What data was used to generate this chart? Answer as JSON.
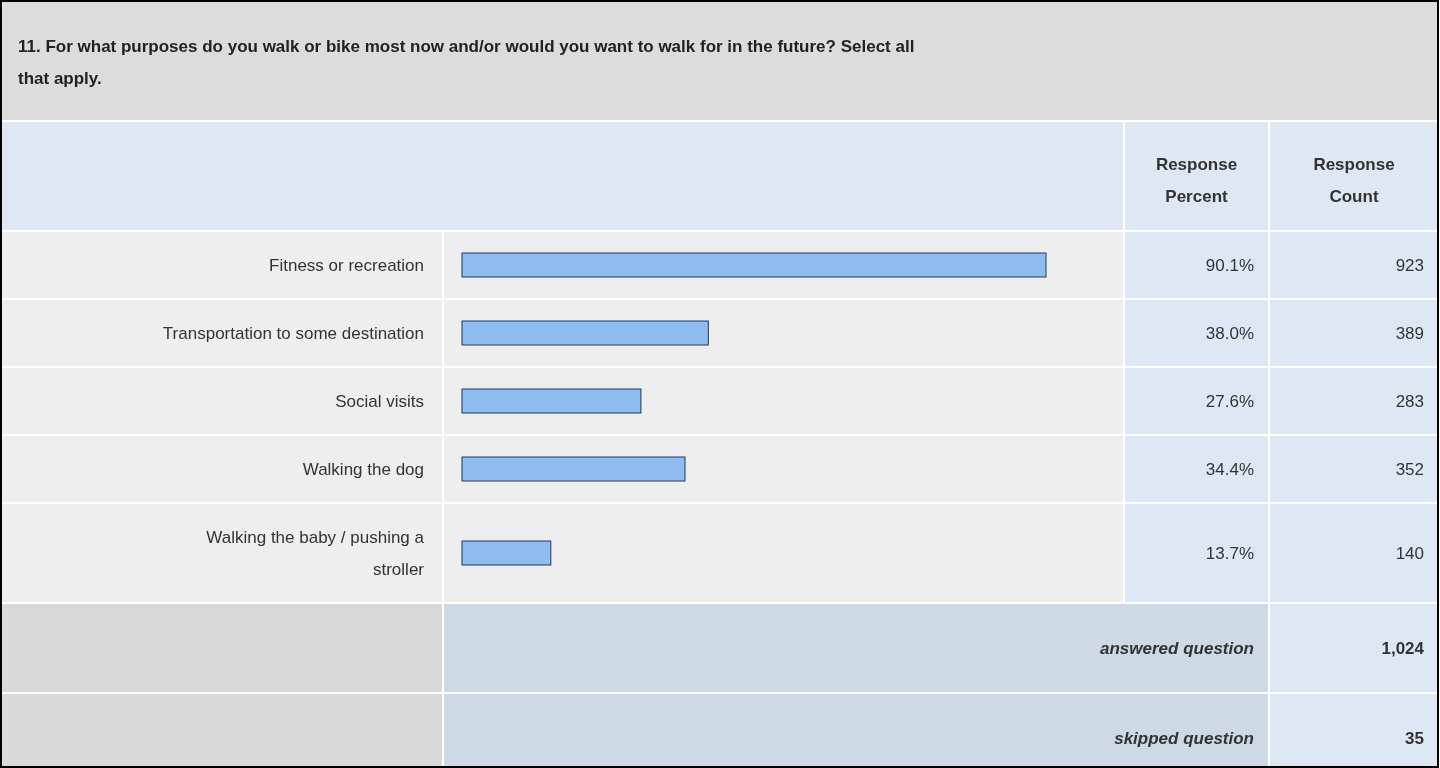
{
  "chart_data": {
    "type": "bar",
    "orientation": "horizontal",
    "title": "11. For what purposes do you walk or bike most now and/or would you want to walk for in the future? Select all that apply.",
    "categories": [
      "Fitness or recreation",
      "Transportation to some destination",
      "Social visits",
      "Walking the dog",
      "Walking the baby / pushing a stroller"
    ],
    "series": [
      {
        "name": "Response Percent",
        "color": "#8fbdf0",
        "values": [
          90.1,
          38.0,
          27.6,
          34.4,
          13.7
        ],
        "value_labels": [
          "90.1%",
          "38.0%",
          "27.6%",
          "34.4%",
          "13.7%"
        ]
      }
    ],
    "tick_labels": false,
    "annotations": [
      "Response Count",
      "923",
      "389",
      "283",
      "352",
      "140",
      "answered question",
      "1,024",
      "skipped question",
      "35"
    ]
  }
}
